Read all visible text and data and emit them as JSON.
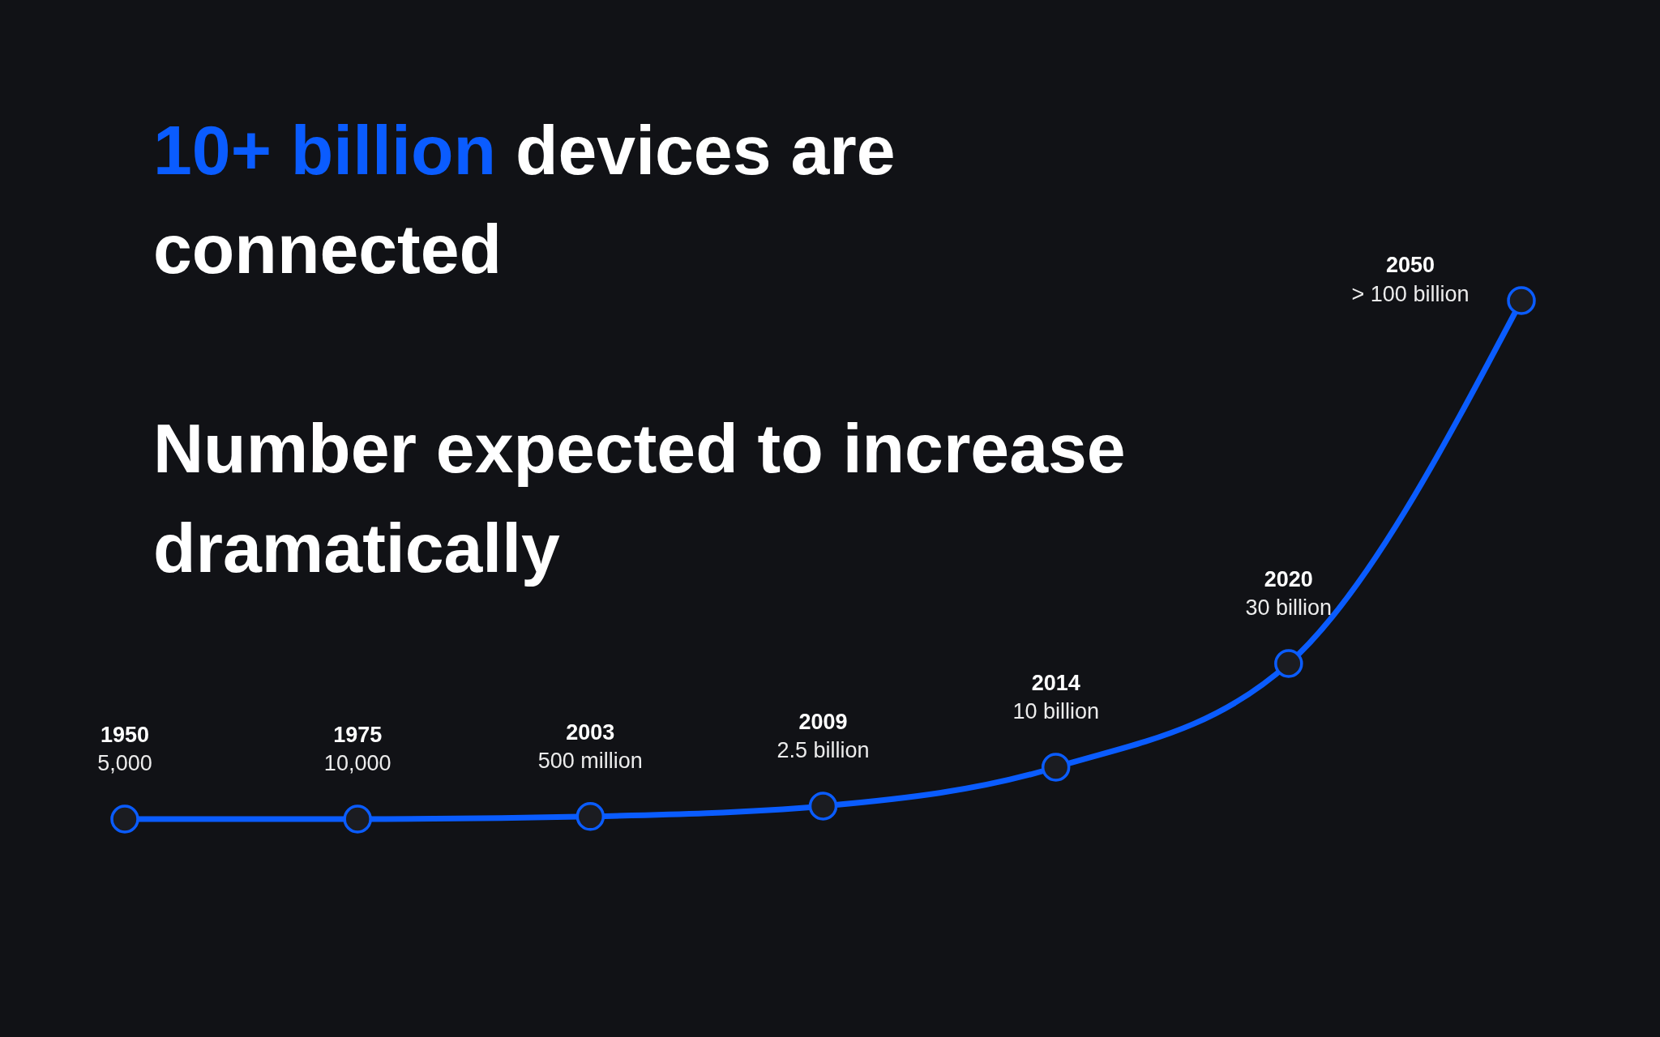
{
  "chart_data": {
    "type": "line",
    "title": "10+ billion devices are connected",
    "subtitle": "Number expected to increase dramatically",
    "categories": [
      "1950",
      "1975",
      "2003",
      "2009",
      "2014",
      "2020",
      "2050"
    ],
    "color": "#0a5cff",
    "values": [
      5000,
      10000,
      500000000,
      2500000000,
      10000000000,
      30000000000,
      100000000000
    ],
    "value_labels": [
      "5,000",
      "10,000",
      "500 million",
      "2.5 billion",
      "10 billion",
      "30 billion",
      "> 100 billion"
    ],
    "marker": "circle",
    "tick_labels": false
  }
}
